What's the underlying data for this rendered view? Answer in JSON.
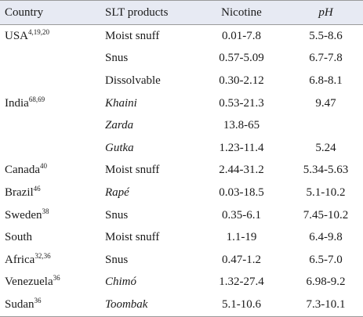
{
  "headers": {
    "country": "Country",
    "products": "SLT products",
    "nicotine": "Nicotine",
    "ph": "pH"
  },
  "rows": [
    {
      "country": "USA",
      "refs": "4,19,20",
      "product": "Moist snuff",
      "product_italic": false,
      "nicotine": "0.01-7.8",
      "ph": "5.5-8.6"
    },
    {
      "country": "",
      "refs": "",
      "product": "Snus",
      "product_italic": false,
      "nicotine": "0.57-5.09",
      "ph": "6.7-7.8"
    },
    {
      "country": "",
      "refs": "",
      "product": "Dissolvable",
      "product_italic": false,
      "nicotine": "0.30-2.12",
      "ph": "6.8-8.1"
    },
    {
      "country": "India",
      "refs": "68,69",
      "product": "Khaini",
      "product_italic": true,
      "nicotine": "0.53-21.3",
      "ph": "9.47"
    },
    {
      "country": "",
      "refs": "",
      "product": "Zarda",
      "product_italic": true,
      "nicotine": "13.8-65",
      "ph": ""
    },
    {
      "country": "",
      "refs": "",
      "product": "Gutka",
      "product_italic": true,
      "nicotine": "1.23-11.4",
      "ph": "5.24"
    },
    {
      "country": "Canada",
      "refs": "40",
      "product": "Moist snuff",
      "product_italic": false,
      "nicotine": "2.44-31.2",
      "ph": "5.34-5.63"
    },
    {
      "country": "Brazil",
      "refs": "46",
      "product": "Rapé",
      "product_italic": true,
      "nicotine": "0.03-18.5",
      "ph": "5.1-10.2"
    },
    {
      "country": "Sweden",
      "refs": "38",
      "product": "Snus",
      "product_italic": false,
      "nicotine": "0.35-6.1",
      "ph": "7.45-10.2"
    },
    {
      "country": "South",
      "refs": "",
      "product": "Moist snuff",
      "product_italic": false,
      "nicotine": "1.1-19",
      "ph": "6.4-9.8"
    },
    {
      "country": "Africa",
      "refs": "32,36",
      "product": "Snus",
      "product_italic": false,
      "nicotine": "0.47-1.2",
      "ph": "6.5-7.0"
    },
    {
      "country": "Venezuela",
      "refs": "36",
      "product": "Chimó",
      "product_italic": true,
      "nicotine": "1.32-27.4",
      "ph": "6.98-9.2"
    },
    {
      "country": "Sudan",
      "refs": "36",
      "product": "Toombak",
      "product_italic": true,
      "nicotine": "5.1-10.6",
      "ph": "7.3-10.1"
    }
  ]
}
